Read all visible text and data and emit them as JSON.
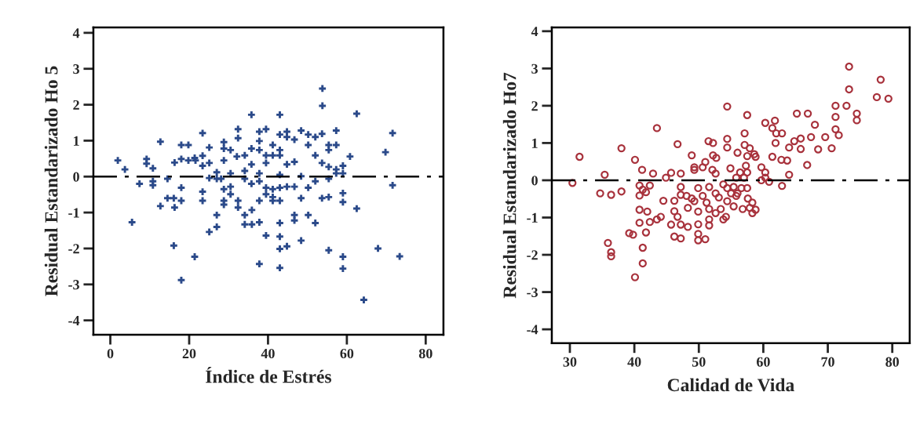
{
  "chart_data": [
    {
      "type": "scatter",
      "xlabel": "Índice de Estrés",
      "ylabel": "Residual Estandarizado Ho 5",
      "xlim": [
        -4.3,
        84.5
      ],
      "ylim": [
        -4.4,
        4.15
      ],
      "xticks": [
        0,
        20,
        40,
        60,
        80
      ],
      "yticks": [
        -4,
        -3,
        -2,
        -1,
        0,
        1,
        2,
        3,
        4
      ],
      "grid": false,
      "marker": "cross",
      "ref_lines": [
        {
          "axis": "y",
          "value": 0,
          "color": "#000000",
          "line_style": "dashdot"
        }
      ],
      "series": [
        {
          "color": "#2b4a8a",
          "x": [
            1.9,
            3.7,
            5.5,
            7.4,
            9.2,
            9.2,
            10.8,
            10.8,
            10.8,
            12.7,
            12.7,
            14.5,
            14.5,
            16.1,
            16.3,
            16.3,
            18.0,
            19.8,
            18.0,
            18.0,
            18.0,
            19.8,
            21.4,
            21.6,
            23.4,
            23.4,
            23.4,
            23.4,
            23.4,
            25.1,
            25.1,
            25.1,
            27.0,
            27.0,
            27.0,
            28.1,
            28.8,
            28.8,
            28.8,
            28.8,
            28.8,
            28.8,
            30.5,
            30.5,
            30.5,
            30.5,
            32.1,
            32.4,
            32.4,
            32.4,
            32.4,
            34.1,
            34.1,
            34.1,
            34.1,
            34.1,
            35.8,
            35.8,
            35.8,
            35.8,
            35.9,
            35.9,
            37.8,
            37.8,
            37.8,
            37.8,
            37.8,
            37.8,
            37.8,
            39.5,
            39.5,
            39.5,
            39.5,
            39.5,
            41.2,
            41.2,
            41.2,
            41.2,
            41.2,
            43.0,
            43.0,
            43.0,
            43.0,
            43.0,
            43.0,
            43.0,
            43.0,
            44.8,
            44.8,
            44.8,
            44.8,
            46.7,
            46.7,
            46.7,
            46.7,
            46.7,
            48.4,
            48.4,
            48.4,
            50.2,
            50.2,
            50.2,
            50.2,
            52.0,
            52.0,
            52.0,
            52.0,
            53.7,
            53.7,
            53.7,
            53.8,
            53.8,
            55.4,
            55.4,
            55.4,
            55.4,
            55.4,
            57.3,
            57.3,
            57.3,
            57.3,
            59.0,
            59.0,
            59.0,
            59.0,
            60.8,
            62.5,
            62.5,
            69.8,
            71.6,
            71.6,
            25.1,
            27.0,
            39.5,
            43.0,
            43.0,
            44.8,
            48.4,
            16.1,
            21.4,
            18.0,
            37.8,
            43.0,
            55.4,
            59.0,
            59.0,
            67.9,
            73.4,
            64.3
          ],
          "values": [
            0.45,
            0.2,
            -1.27,
            -0.2,
            0.49,
            0.36,
            0.23,
            -0.13,
            -0.24,
            0.97,
            -0.82,
            -0.06,
            -0.6,
            -0.6,
            -0.86,
            0.39,
            0.88,
            0.88,
            0.49,
            -0.31,
            -0.67,
            0.45,
            0.52,
            0.45,
            0.58,
            1.21,
            0.3,
            -0.42,
            -0.67,
            0.81,
            0.38,
            -0.04,
            0.12,
            -0.06,
            -1.07,
            -0.06,
            0.96,
            0.78,
            0.45,
            -0.35,
            -0.67,
            -0.78,
            0.74,
            0.09,
            -0.28,
            -0.49,
            0.56,
            1.32,
            1.07,
            -0.67,
            -0.86,
            0.59,
            0.16,
            -0.06,
            -1.07,
            -1.33,
            1.72,
            0.78,
            0.34,
            -0.2,
            -0.93,
            -1.33,
            1.25,
            0.99,
            0.74,
            0.09,
            -0.13,
            -0.67,
            -1.27,
            1.32,
            0.59,
            0.38,
            -0.31,
            -0.49,
            0.88,
            0.59,
            -0.35,
            -0.57,
            -0.67,
            1.72,
            1.17,
            0.74,
            0.59,
            0.05,
            -0.31,
            -0.67,
            -1.29,
            1.25,
            1.1,
            0.34,
            -0.28,
            1.03,
            0.41,
            -0.28,
            -1.07,
            -1.22,
            1.28,
            0.01,
            -0.6,
            1.17,
            0.88,
            -0.31,
            -1.07,
            1.1,
            0.59,
            -0.13,
            -1.29,
            1.19,
            0.38,
            -0.6,
            1.97,
            2.45,
            0.88,
            0.74,
            0.27,
            -0.06,
            -0.57,
            1.28,
            0.88,
            0.2,
            0.09,
            0.3,
            0.09,
            -0.46,
            -0.71,
            0.56,
            1.75,
            -0.89,
            0.68,
            1.21,
            -0.24,
            -1.54,
            -1.4,
            -1.64,
            -1.67,
            -2.01,
            -1.94,
            -1.78,
            -1.92,
            -2.23,
            -2.88,
            -2.43,
            -2.54,
            -2.05,
            -2.23,
            -2.56,
            -2.0,
            -2.22,
            -3.43
          ]
        }
      ]
    },
    {
      "type": "scatter",
      "xlabel": "Calidad de Vida",
      "ylabel": "Residual Estandarizado Ho7",
      "xlim": [
        27.2,
        82.7
      ],
      "ylim": [
        -4.37,
        4.1
      ],
      "xticks": [
        30,
        40,
        50,
        60,
        70,
        80
      ],
      "yticks": [
        -4,
        -3,
        -2,
        -1,
        0,
        1,
        2,
        3,
        4
      ],
      "grid": false,
      "marker": "circle",
      "ref_lines": [
        {
          "axis": "y",
          "value": 0,
          "color": "#000000",
          "line_style": "dashdot"
        }
      ],
      "series": [
        {
          "color": "#a8323c",
          "x": [
            31.5,
            38.0,
            40.1,
            41.2,
            43.5,
            46.7,
            48.9,
            49.3,
            51.5,
            52.2,
            51.0,
            52.2,
            52.7,
            54.4,
            54.4,
            54.4,
            56.0,
            57.1,
            57.1,
            57.5,
            57.9,
            58.6,
            58.8,
            57.5,
            60.3,
            61.4,
            61.8,
            62.0,
            61.9,
            62.9,
            61.4,
            62.8,
            63.7,
            64.0,
            64.8,
            65.2,
            65.8,
            65.8,
            66.9,
            66.8,
            67.4,
            68.0,
            68.5,
            69.6,
            70.6,
            71.2,
            71.2,
            71.2,
            71.7,
            72.9,
            73.3,
            74.5,
            74.5,
            77.6,
            79.4,
            78.2,
            73.3,
            30.4,
            35.4,
            34.7,
            36.4,
            38.0,
            35.9,
            36.4,
            36.4,
            39.2,
            39.8,
            40.1,
            40.8,
            40.8,
            40.8,
            40.8,
            41.3,
            41.3,
            41.8,
            42.0,
            41.3,
            41.8,
            42.4,
            42.4,
            42.9,
            43.5,
            44.1,
            44.5,
            44.9,
            45.7,
            45.7,
            46.2,
            46.2,
            46.2,
            46.7,
            47.2,
            47.2,
            47.2,
            47.2,
            47.2,
            48.1,
            48.3,
            48.3,
            48.9,
            49.3,
            49.3,
            49.9,
            49.9,
            49.9,
            49.9,
            49.9,
            50.6,
            50.6,
            51.0,
            51.2,
            51.6,
            51.6,
            51.6,
            51.6,
            52.1,
            52.6,
            52.6,
            52.6,
            53.1,
            53.4,
            53.8,
            53.8,
            54.2,
            54.4,
            54.4,
            54.9,
            55.0,
            55.4,
            55.4,
            55.8,
            55.8,
            56.0,
            56.4,
            56.6,
            56.8,
            57.0,
            57.3,
            57.5,
            57.5,
            57.6,
            57.9,
            58.3,
            58.3,
            58.8,
            59.7,
            59.7,
            60.3,
            60.3,
            60.9,
            62.9,
            64.0
          ],
          "values": [
            0.63,
            0.86,
            0.55,
            0.28,
            1.4,
            0.97,
            0.67,
            0.28,
            1.05,
            1.0,
            0.49,
            0.67,
            0.6,
            1.98,
            1.11,
            0.88,
            0.74,
            1.26,
            0.95,
            1.75,
            0.86,
            0.7,
            0.63,
            0.65,
            1.54,
            1.4,
            1.6,
            1.26,
            1.0,
            1.26,
            0.63,
            0.55,
            0.53,
            0.88,
            1.05,
            1.79,
            1.12,
            0.84,
            1.79,
            0.41,
            1.16,
            1.49,
            0.83,
            1.16,
            0.86,
            2.0,
            1.7,
            1.37,
            1.21,
            2.0,
            2.44,
            1.79,
            1.61,
            2.23,
            2.19,
            2.7,
            3.05,
            -0.07,
            0.15,
            -0.35,
            -0.39,
            -0.3,
            -1.68,
            -1.93,
            -2.04,
            -1.42,
            -1.46,
            -2.6,
            -0.14,
            -0.41,
            -0.79,
            -1.14,
            -1.81,
            -2.23,
            -1.4,
            -0.84,
            -0.25,
            -0.32,
            -0.14,
            -1.12,
            0.18,
            -1.05,
            -0.98,
            -0.55,
            0.07,
            0.2,
            -1.19,
            -0.55,
            -0.83,
            -1.51,
            -0.98,
            0.18,
            -0.18,
            -0.39,
            -1.19,
            -1.56,
            -0.42,
            -0.74,
            -1.25,
            -0.49,
            -0.56,
            0.35,
            -0.21,
            -0.84,
            -1.18,
            -1.44,
            -1.61,
            -0.42,
            0.35,
            -1.58,
            -0.6,
            -0.18,
            -0.77,
            -1.05,
            -1.21,
            0.28,
            0.18,
            -0.35,
            -0.88,
            -0.46,
            -0.77,
            -0.11,
            -1.05,
            -0.98,
            -0.21,
            -0.56,
            0.32,
            -0.35,
            -0.18,
            -0.7,
            0.07,
            -0.42,
            -0.35,
            0.21,
            -0.21,
            -0.77,
            0.07,
            0.39,
            0.21,
            -0.21,
            -0.49,
            -0.74,
            -0.88,
            -0.6,
            -0.79,
            0.35,
            0.0,
            0.21,
            0.07,
            -0.04,
            -0.15,
            0.15
          ]
        }
      ]
    }
  ]
}
